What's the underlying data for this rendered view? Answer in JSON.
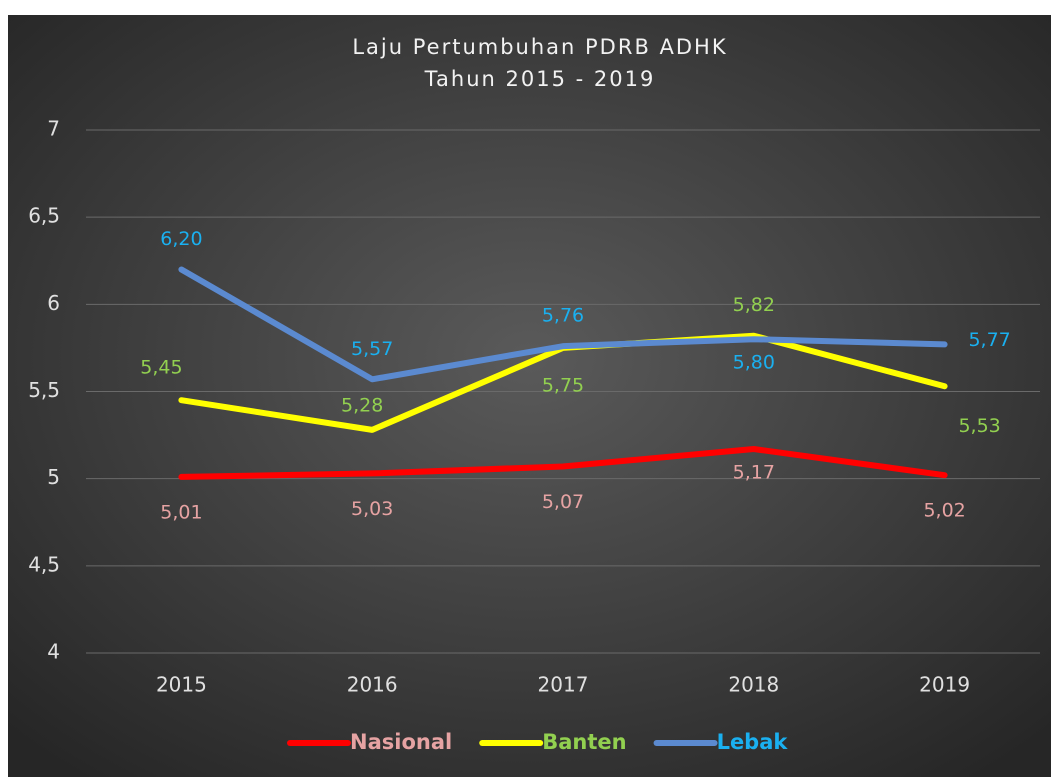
{
  "chart_data": {
    "type": "line",
    "title": "Laju Pertumbuhan PDRB ADHK",
    "subtitle": "Tahun 2015 - 2019",
    "categories": [
      "2015",
      "2016",
      "2017",
      "2018",
      "2019"
    ],
    "series": [
      {
        "name": "Nasional",
        "color": "#ff0000",
        "label_color": "#e6a3a3",
        "values": [
          5.01,
          5.03,
          5.07,
          5.17,
          5.02
        ],
        "value_labels": [
          "5,01",
          "5,03",
          "5,07",
          "5,17",
          "5,02"
        ]
      },
      {
        "name": "Banten",
        "color": "#ffff00",
        "label_color": "#92d050",
        "values": [
          5.45,
          5.28,
          5.75,
          5.82,
          5.53
        ],
        "value_labels": [
          "5,45",
          "5,28",
          "5,75",
          "5,82",
          "5,53"
        ]
      },
      {
        "name": "Lebak",
        "color": "#5b8ad0",
        "label_color": "#1ab0f0",
        "values": [
          6.2,
          5.57,
          5.76,
          5.8,
          5.77
        ],
        "value_labels": [
          "6,20",
          "5,57",
          "5,76",
          "5,80",
          "5,77"
        ]
      }
    ],
    "ylim": [
      4,
      7
    ],
    "yticks": [
      4,
      {
        "value": 4.5,
        "label": "4,5"
      },
      5,
      {
        "value": 5.5,
        "label": "5,5"
      },
      6,
      {
        "value": 6.5,
        "label": "6,5"
      },
      7
    ],
    "grid": true,
    "legend": "bottom"
  }
}
